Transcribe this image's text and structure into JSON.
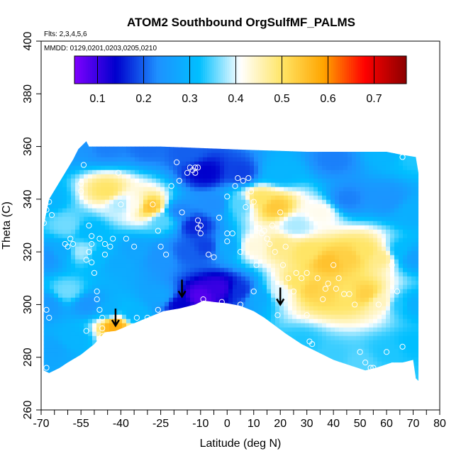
{
  "chart_data": {
    "type": "heatmap",
    "title": "ATOM2 Southbound OrgSulfMF_PALMS",
    "annotations": [
      "Flts: 2,3,4,5,6",
      "MMDD: 0129,0201,0203,0205,0210"
    ],
    "xlabel": "Latitude (deg N)",
    "ylabel": "Theta (C)",
    "xlim": [
      -70,
      80
    ],
    "ylim": [
      260,
      400
    ],
    "x_ticks_labeled": [
      -70,
      -55,
      -40,
      -25,
      -10,
      0,
      10,
      20,
      30,
      40,
      50,
      60,
      70,
      80
    ],
    "x_ticks_minor": [
      -65,
      -60,
      -50,
      -45,
      -35,
      -30,
      -20,
      -15,
      -5,
      5,
      15,
      25,
      35,
      45,
      55,
      65,
      75
    ],
    "y_ticks": [
      260,
      280,
      300,
      320,
      340,
      360,
      380,
      400
    ],
    "colorbar": {
      "range": [
        0.05,
        0.77
      ],
      "ticks": [
        0.1,
        0.2,
        0.3,
        0.4,
        0.5,
        0.6,
        0.7
      ],
      "colors": [
        "#7f00ff",
        "#0000cd",
        "#1e90ff",
        "#00bfff",
        "#ffffff",
        "#ffe566",
        "#ffa500",
        "#ff0000",
        "#8b0000"
      ]
    },
    "field_points": [
      {
        "lat": -66,
        "theta": 360,
        "value": 0.26
      },
      {
        "lat": -56,
        "theta": 362,
        "value": 0.24
      },
      {
        "lat": -45,
        "theta": 360,
        "value": 0.22
      },
      {
        "lat": -30,
        "theta": 360,
        "value": 0.21
      },
      {
        "lat": -15,
        "theta": 358,
        "value": 0.2
      },
      {
        "lat": -8,
        "theta": 350,
        "value": 0.14
      },
      {
        "lat": 5,
        "theta": 350,
        "value": 0.18
      },
      {
        "lat": 20,
        "theta": 350,
        "value": 0.3
      },
      {
        "lat": 40,
        "theta": 355,
        "value": 0.22
      },
      {
        "lat": 60,
        "theta": 358,
        "value": 0.3
      },
      {
        "lat": 70,
        "theta": 356,
        "value": 0.33
      },
      {
        "lat": -68,
        "theta": 340,
        "value": 0.3
      },
      {
        "lat": -60,
        "theta": 330,
        "value": 0.36
      },
      {
        "lat": -52,
        "theta": 328,
        "value": 0.31
      },
      {
        "lat": -45,
        "theta": 343,
        "value": 0.5
      },
      {
        "lat": -40,
        "theta": 338,
        "value": 0.38
      },
      {
        "lat": -35,
        "theta": 338,
        "value": 0.42
      },
      {
        "lat": -29,
        "theta": 337,
        "value": 0.55
      },
      {
        "lat": -24,
        "theta": 332,
        "value": 0.35
      },
      {
        "lat": -18,
        "theta": 335,
        "value": 0.22
      },
      {
        "lat": -12,
        "theta": 330,
        "value": 0.16
      },
      {
        "lat": -5,
        "theta": 338,
        "value": 0.23
      },
      {
        "lat": 5,
        "theta": 338,
        "value": 0.35
      },
      {
        "lat": 12,
        "theta": 340,
        "value": 0.5
      },
      {
        "lat": 18,
        "theta": 337,
        "value": 0.54
      },
      {
        "lat": 26,
        "theta": 330,
        "value": 0.38
      },
      {
        "lat": 35,
        "theta": 335,
        "value": 0.42
      },
      {
        "lat": 45,
        "theta": 340,
        "value": 0.22
      },
      {
        "lat": 60,
        "theta": 340,
        "value": 0.24
      },
      {
        "lat": 70,
        "theta": 335,
        "value": 0.29
      },
      {
        "lat": -68,
        "theta": 318,
        "value": 0.24
      },
      {
        "lat": -62,
        "theta": 320,
        "value": 0.28
      },
      {
        "lat": -55,
        "theta": 320,
        "value": 0.38
      },
      {
        "lat": -48,
        "theta": 318,
        "value": 0.31
      },
      {
        "lat": -42,
        "theta": 316,
        "value": 0.28
      },
      {
        "lat": -35,
        "theta": 320,
        "value": 0.27
      },
      {
        "lat": -25,
        "theta": 318,
        "value": 0.24
      },
      {
        "lat": -15,
        "theta": 320,
        "value": 0.2
      },
      {
        "lat": -8,
        "theta": 322,
        "value": 0.18
      },
      {
        "lat": 0,
        "theta": 322,
        "value": 0.28
      },
      {
        "lat": 10,
        "theta": 322,
        "value": 0.43
      },
      {
        "lat": 20,
        "theta": 322,
        "value": 0.48
      },
      {
        "lat": 30,
        "theta": 320,
        "value": 0.5
      },
      {
        "lat": 38,
        "theta": 316,
        "value": 0.55
      },
      {
        "lat": 46,
        "theta": 318,
        "value": 0.53
      },
      {
        "lat": 52,
        "theta": 320,
        "value": 0.5
      },
      {
        "lat": 58,
        "theta": 318,
        "value": 0.48
      },
      {
        "lat": 65,
        "theta": 320,
        "value": 0.31
      },
      {
        "lat": 70,
        "theta": 318,
        "value": 0.26
      },
      {
        "lat": -68,
        "theta": 300,
        "value": 0.25
      },
      {
        "lat": -60,
        "theta": 305,
        "value": 0.36
      },
      {
        "lat": -52,
        "theta": 300,
        "value": 0.24
      },
      {
        "lat": -45,
        "theta": 298,
        "value": 0.29
      },
      {
        "lat": -42,
        "theta": 292,
        "value": 0.58
      },
      {
        "lat": -35,
        "theta": 296,
        "value": 0.3
      },
      {
        "lat": -25,
        "theta": 303,
        "value": 0.27
      },
      {
        "lat": -18,
        "theta": 300,
        "value": 0.14
      },
      {
        "lat": -10,
        "theta": 303,
        "value": 0.08
      },
      {
        "lat": -3,
        "theta": 306,
        "value": 0.1
      },
      {
        "lat": 5,
        "theta": 305,
        "value": 0.17
      },
      {
        "lat": 12,
        "theta": 303,
        "value": 0.28
      },
      {
        "lat": 20,
        "theta": 305,
        "value": 0.4
      },
      {
        "lat": 26,
        "theta": 308,
        "value": 0.5
      },
      {
        "lat": 32,
        "theta": 306,
        "value": 0.53
      },
      {
        "lat": 38,
        "theta": 305,
        "value": 0.52
      },
      {
        "lat": 45,
        "theta": 304,
        "value": 0.5
      },
      {
        "lat": 52,
        "theta": 304,
        "value": 0.53
      },
      {
        "lat": 58,
        "theta": 301,
        "value": 0.45
      },
      {
        "lat": 65,
        "theta": 300,
        "value": 0.33
      },
      {
        "lat": 70,
        "theta": 300,
        "value": 0.29
      },
      {
        "lat": -66,
        "theta": 283,
        "value": 0.27
      },
      {
        "lat": -58,
        "theta": 287,
        "value": 0.3
      },
      {
        "lat": 28,
        "theta": 285,
        "value": 0.33
      },
      {
        "lat": 40,
        "theta": 280,
        "value": 0.34
      },
      {
        "lat": 50,
        "theta": 278,
        "value": 0.35
      },
      {
        "lat": 60,
        "theta": 282,
        "value": 0.33
      },
      {
        "lat": 70,
        "theta": 285,
        "value": 0.32
      }
    ],
    "coverage": {
      "top": [
        [
          -67,
          340
        ],
        [
          -64,
          345
        ],
        [
          -61,
          350
        ],
        [
          -58,
          355
        ],
        [
          -56,
          359
        ],
        [
          -54,
          361
        ],
        [
          -53,
          362
        ],
        [
          -52,
          360
        ],
        [
          -25,
          360
        ],
        [
          0,
          359
        ],
        [
          30,
          358
        ],
        [
          60,
          358
        ],
        [
          65,
          357
        ],
        [
          71,
          356
        ],
        [
          72,
          350
        ]
      ],
      "bottom": [
        [
          72,
          271
        ],
        [
          71,
          272
        ],
        [
          70,
          279
        ],
        [
          66,
          278
        ],
        [
          62,
          278
        ],
        [
          56,
          276
        ],
        [
          52,
          275
        ],
        [
          46,
          277
        ],
        [
          40,
          279
        ],
        [
          34,
          282
        ],
        [
          28,
          285
        ],
        [
          22,
          289
        ],
        [
          18,
          292
        ],
        [
          14,
          295
        ],
        [
          10,
          297.5
        ],
        [
          5,
          299.5
        ],
        [
          0,
          300.5
        ],
        [
          -5,
          301
        ],
        [
          -9,
          301.5
        ],
        [
          -12,
          300
        ],
        [
          -18,
          298.5
        ],
        [
          -24,
          297.5
        ],
        [
          -30,
          295
        ],
        [
          -36,
          292.5
        ],
        [
          -42,
          290
        ],
        [
          -46,
          289.5
        ],
        [
          -50,
          285
        ],
        [
          -55,
          281
        ],
        [
          -60,
          278
        ],
        [
          -63,
          276
        ],
        [
          -67,
          274
        ],
        [
          -69,
          275
        ],
        [
          -69,
          300
        ],
        [
          -69,
          330
        ]
      ]
    },
    "sample_points": [
      [
        -69,
        331
      ],
      [
        -68,
        336
      ],
      [
        -67,
        339
      ],
      [
        -66,
        334
      ],
      [
        -68,
        298
      ],
      [
        -67,
        295
      ],
      [
        -68,
        276
      ],
      [
        -61,
        323
      ],
      [
        -60,
        322
      ],
      [
        -59,
        325
      ],
      [
        -58,
        323
      ],
      [
        -55,
        346
      ],
      [
        -55,
        343
      ],
      [
        -54,
        353
      ],
      [
        -52,
        330
      ],
      [
        -51,
        326
      ],
      [
        -51,
        316
      ],
      [
        -50,
        312
      ],
      [
        -49,
        305
      ],
      [
        -49,
        302
      ],
      [
        -48,
        298
      ],
      [
        -47,
        295
      ],
      [
        -47,
        291
      ],
      [
        -47,
        288
      ],
      [
        -48,
        287
      ],
      [
        -50,
        283
      ],
      [
        -52,
        281
      ],
      [
        -53,
        290
      ],
      [
        -53,
        317
      ],
      [
        -52,
        320
      ],
      [
        -51,
        323
      ],
      [
        -48,
        325
      ],
      [
        -46,
        323
      ],
      [
        -46,
        319
      ],
      [
        -44,
        322
      ],
      [
        -43,
        325
      ],
      [
        -41,
        350
      ],
      [
        -40,
        338
      ],
      [
        -38,
        325
      ],
      [
        -35,
        322
      ],
      [
        -34,
        295
      ],
      [
        -32,
        292
      ],
      [
        -30,
        295
      ],
      [
        -28,
        338
      ],
      [
        -26,
        328
      ],
      [
        -26,
        298
      ],
      [
        -25,
        322
      ],
      [
        -23,
        319
      ],
      [
        -21,
        345
      ],
      [
        -19,
        354
      ],
      [
        -18,
        347
      ],
      [
        -17,
        335
      ],
      [
        -15,
        350
      ],
      [
        -14,
        352
      ],
      [
        -13,
        351
      ],
      [
        -12,
        350
      ],
      [
        -12,
        352
      ],
      [
        -11,
        352
      ],
      [
        -11,
        332
      ],
      [
        -11,
        329
      ],
      [
        -10,
        330
      ],
      [
        -10,
        327
      ],
      [
        -9,
        302
      ],
      [
        -7,
        319
      ],
      [
        -5,
        318
      ],
      [
        -3,
        333
      ],
      [
        -2,
        301
      ],
      [
        0,
        341
      ],
      [
        0,
        327
      ],
      [
        0,
        324
      ],
      [
        2,
        327
      ],
      [
        3,
        345
      ],
      [
        4,
        348
      ],
      [
        5,
        300
      ],
      [
        5,
        320
      ],
      [
        6,
        347
      ],
      [
        7,
        337
      ],
      [
        8,
        348
      ],
      [
        9,
        343
      ],
      [
        10,
        339
      ],
      [
        10,
        305
      ],
      [
        11,
        315
      ],
      [
        12,
        329
      ],
      [
        13,
        327
      ],
      [
        14,
        328
      ],
      [
        15,
        325
      ],
      [
        16,
        323
      ],
      [
        17,
        330
      ],
      [
        18,
        320
      ],
      [
        19,
        296
      ],
      [
        20,
        335
      ],
      [
        21,
        315
      ],
      [
        22,
        322
      ],
      [
        23,
        310
      ],
      [
        25,
        305
      ],
      [
        26,
        312
      ],
      [
        28,
        310
      ],
      [
        30,
        312
      ],
      [
        30,
        296
      ],
      [
        31,
        286
      ],
      [
        32,
        285
      ],
      [
        34,
        310
      ],
      [
        36,
        302
      ],
      [
        37,
        306
      ],
      [
        38,
        308
      ],
      [
        40,
        315
      ],
      [
        41,
        306
      ],
      [
        42,
        310
      ],
      [
        44,
        304
      ],
      [
        46,
        304
      ],
      [
        48,
        300
      ],
      [
        50,
        282
      ],
      [
        52,
        278
      ],
      [
        54,
        276
      ],
      [
        55,
        276
      ],
      [
        57,
        300
      ],
      [
        60,
        282
      ],
      [
        62,
        315
      ],
      [
        64,
        305
      ],
      [
        66,
        356
      ],
      [
        66,
        284
      ]
    ],
    "flight_markers": [
      {
        "lat": -42,
        "theta": 292
      },
      {
        "lat": -17,
        "theta": 303
      },
      {
        "lat": 20,
        "theta": 300
      }
    ]
  }
}
